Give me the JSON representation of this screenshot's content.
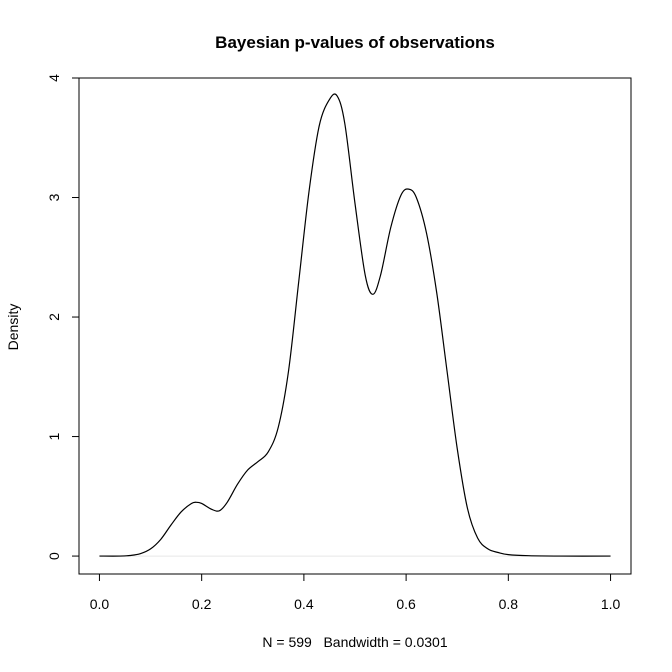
{
  "chart_data": {
    "type": "line",
    "title": "Bayesian p-values of observations",
    "xlabel": "N = 599   Bandwidth = 0.0301",
    "ylabel": "Density",
    "xlim": [
      -0.04,
      1.04
    ],
    "ylim": [
      -0.15,
      4.0
    ],
    "x_ticks": [
      0.0,
      0.2,
      0.4,
      0.6,
      0.8,
      1.0
    ],
    "x_tick_labels": [
      "0.0",
      "0.2",
      "0.4",
      "0.6",
      "0.8",
      "1.0"
    ],
    "y_ticks": [
      0,
      1,
      2,
      3,
      4
    ],
    "y_tick_labels": [
      "0",
      "1",
      "2",
      "3",
      "4"
    ],
    "baseline": {
      "y": 0,
      "color": "#e6e6e6"
    },
    "line_color": "#000000",
    "grid": false,
    "series": [
      {
        "x": [
          0.0,
          0.04,
          0.06,
          0.08,
          0.1,
          0.12,
          0.14,
          0.16,
          0.18,
          0.19,
          0.2,
          0.22,
          0.235,
          0.25,
          0.27,
          0.29,
          0.31,
          0.33,
          0.35,
          0.37,
          0.39,
          0.41,
          0.43,
          0.45,
          0.465,
          0.48,
          0.5,
          0.52,
          0.535,
          0.55,
          0.57,
          0.59,
          0.605,
          0.62,
          0.64,
          0.66,
          0.68,
          0.7,
          0.72,
          0.74,
          0.76,
          0.78,
          0.8,
          0.84,
          0.9,
          1.0
        ],
        "y": [
          0.0,
          0.0,
          0.005,
          0.02,
          0.06,
          0.14,
          0.26,
          0.37,
          0.44,
          0.45,
          0.44,
          0.39,
          0.38,
          0.45,
          0.6,
          0.72,
          0.79,
          0.87,
          1.08,
          1.55,
          2.3,
          3.05,
          3.6,
          3.82,
          3.85,
          3.62,
          2.95,
          2.35,
          2.19,
          2.35,
          2.75,
          3.02,
          3.07,
          3.0,
          2.7,
          2.2,
          1.55,
          0.9,
          0.4,
          0.15,
          0.06,
          0.03,
          0.012,
          0.003,
          0.0,
          0.0
        ]
      }
    ]
  }
}
